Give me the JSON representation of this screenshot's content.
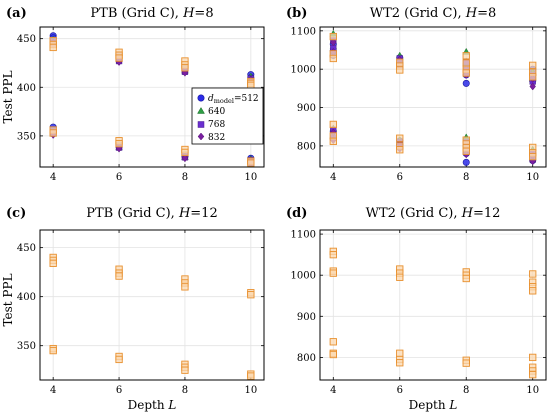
{
  "colors": {
    "d512": "#2b2be8",
    "d640": "#2e9e44",
    "d768": "#6a2fd0",
    "d832": "#7a1fa0",
    "grid": "#e3e3e3",
    "orange_fill": "#fbd8b0",
    "orange_edge": "#e8902e"
  },
  "chart_data": [
    {
      "panel_label": "(a)",
      "type": "scatter",
      "title": "PTB (Grid C), H=8",
      "title_main": "PTB (Grid C), ",
      "title_var": "H",
      "title_tail": "=8",
      "xlabel": "",
      "ylabel": "Test PPL",
      "x_ticks": [
        "4",
        "6",
        "8",
        "10"
      ],
      "y_ticks": [
        "350",
        "400",
        "450"
      ],
      "xlim": [
        3.6,
        10.4
      ],
      "ylim": [
        318,
        462
      ],
      "grid": true,
      "legend": {
        "placement": "center-right",
        "prefix": "d",
        "sub": "model",
        "entries": [
          "=512",
          "640",
          "768",
          "832"
        ]
      },
      "series": [
        {
          "name": "d_model=512",
          "marker": "circle",
          "color_key": "d512",
          "points": [
            [
              4,
              453
            ],
            [
              4,
              451
            ],
            [
              4,
              359
            ],
            [
              4,
              356
            ],
            [
              6,
              433
            ],
            [
              6,
              430
            ],
            [
              6,
              341
            ],
            [
              6,
              339
            ],
            [
              8,
              421
            ],
            [
              8,
              419
            ],
            [
              8,
              331
            ],
            [
              8,
              329
            ],
            [
              10,
              413
            ],
            [
              10,
              410
            ],
            [
              10,
              327
            ],
            [
              10,
              324
            ]
          ]
        },
        {
          "name": "640",
          "marker": "triangle",
          "color_key": "d640",
          "points": [
            [
              4,
              449
            ],
            [
              4,
              447
            ],
            [
              4,
              354
            ],
            [
              4,
              352
            ],
            [
              6,
              431
            ],
            [
              6,
              429
            ],
            [
              6,
              341
            ],
            [
              6,
              338
            ],
            [
              8,
              419
            ],
            [
              8,
              417
            ],
            [
              8,
              331
            ],
            [
              8,
              328
            ],
            [
              10,
              411
            ],
            [
              10,
              409
            ],
            [
              10,
              326
            ],
            [
              10,
              324
            ]
          ]
        },
        {
          "name": "768",
          "marker": "square",
          "color_key": "d768",
          "points": [
            [
              4,
              447
            ],
            [
              4,
              445
            ],
            [
              4,
              355
            ],
            [
              4,
              353
            ],
            [
              6,
              429
            ],
            [
              6,
              427
            ],
            [
              6,
              340
            ],
            [
              6,
              338
            ],
            [
              8,
              418
            ],
            [
              8,
              416
            ],
            [
              8,
              330
            ],
            [
              8,
              328
            ],
            [
              10,
              409
            ],
            [
              10,
              407
            ],
            [
              10,
              325
            ],
            [
              10,
              322
            ]
          ]
        },
        {
          "name": "832",
          "marker": "diamond",
          "color_key": "d832",
          "points": [
            [
              4,
              446
            ],
            [
              4,
              444
            ],
            [
              4,
              353
            ],
            [
              4,
              351
            ],
            [
              6,
              428
            ],
            [
              6,
              426
            ],
            [
              6,
              339
            ],
            [
              6,
              337
            ],
            [
              8,
              417
            ],
            [
              8,
              415
            ],
            [
              8,
              329
            ],
            [
              8,
              327
            ],
            [
              10,
              408
            ],
            [
              10,
              406
            ],
            [
              10,
              325
            ],
            [
              10,
              322
            ]
          ]
        },
        {
          "marker": "square-outline",
          "color_key": "orange_edge",
          "points": [
            [
              4,
              448
            ],
            [
              4,
              444
            ],
            [
              4,
              441
            ],
            [
              4,
              356
            ],
            [
              4,
              353
            ],
            [
              6,
              436
            ],
            [
              6,
              433
            ],
            [
              6,
              430
            ],
            [
              6,
              345
            ],
            [
              6,
              342
            ],
            [
              8,
              427
            ],
            [
              8,
              423
            ],
            [
              8,
              420
            ],
            [
              8,
              336
            ],
            [
              8,
              333
            ],
            [
              10,
              406
            ],
            [
              10,
              404
            ],
            [
              10,
              402
            ],
            [
              10,
              324
            ],
            [
              10,
              322
            ]
          ]
        }
      ]
    },
    {
      "panel_label": "(b)",
      "type": "scatter",
      "title": "WT2 (Grid C), H=8",
      "title_main": "WT2 (Grid C), ",
      "title_var": "H",
      "title_tail": "=8",
      "xlabel": "",
      "ylabel": "",
      "x_ticks": [
        "4",
        "6",
        "8",
        "10"
      ],
      "y_ticks": [
        "800",
        "900",
        "1000",
        "1100"
      ],
      "xlim": [
        3.6,
        10.4
      ],
      "ylim": [
        745,
        1110
      ],
      "grid": true,
      "series": [
        {
          "name": "d_model=512",
          "marker": "circle",
          "color_key": "d512",
          "points": [
            [
              4,
              1065
            ],
            [
              4,
              1048
            ],
            [
              4,
              1036
            ],
            [
              4,
              838
            ],
            [
              4,
              820
            ],
            [
              6,
              1030
            ],
            [
              6,
              1016
            ],
            [
              6,
              1008
            ],
            [
              6,
              813
            ],
            [
              6,
              803
            ],
            [
              8,
              1010
            ],
            [
              8,
              985
            ],
            [
              8,
              963
            ],
            [
              8,
              800
            ],
            [
              8,
              780
            ],
            [
              8,
              757
            ],
            [
              10,
              1000
            ],
            [
              10,
              985
            ],
            [
              10,
              970
            ],
            [
              10,
              780
            ],
            [
              10,
              762
            ]
          ]
        },
        {
          "name": "640",
          "marker": "triangle",
          "color_key": "d640",
          "points": [
            [
              4,
              1092
            ],
            [
              4,
              1060
            ],
            [
              4,
              845
            ],
            [
              4,
              825
            ],
            [
              6,
              1035
            ],
            [
              6,
              1022
            ],
            [
              6,
              815
            ],
            [
              6,
              800
            ],
            [
              8,
              1045
            ],
            [
              8,
              1020
            ],
            [
              8,
              822
            ],
            [
              8,
              803
            ],
            [
              10,
              992
            ],
            [
              10,
              975
            ],
            [
              10,
              790
            ],
            [
              10,
              770
            ]
          ]
        },
        {
          "name": "768",
          "marker": "square",
          "color_key": "d768",
          "points": [
            [
              4,
              1075
            ],
            [
              4,
              1055
            ],
            [
              4,
              842
            ],
            [
              4,
              822
            ],
            [
              6,
              1028
            ],
            [
              6,
              1014
            ],
            [
              6,
              810
            ],
            [
              6,
              797
            ],
            [
              8,
              1020
            ],
            [
              8,
              998
            ],
            [
              8,
              810
            ],
            [
              8,
              790
            ],
            [
              10,
              985
            ],
            [
              10,
              968
            ],
            [
              10,
              782
            ],
            [
              10,
              765
            ]
          ]
        },
        {
          "name": "832",
          "marker": "diamond",
          "color_key": "d832",
          "points": [
            [
              4,
              1070
            ],
            [
              4,
              1045
            ],
            [
              4,
              835
            ],
            [
              4,
              815
            ],
            [
              6,
              1025
            ],
            [
              6,
              1010
            ],
            [
              6,
              805
            ],
            [
              6,
              793
            ],
            [
              8,
              1000
            ],
            [
              8,
              985
            ],
            [
              8,
              795
            ],
            [
              8,
              778
            ],
            [
              10,
              975
            ],
            [
              10,
              955
            ],
            [
              10,
              775
            ],
            [
              10,
              760
            ]
          ]
        },
        {
          "marker": "square-outline",
          "color_key": "orange_edge",
          "points": [
            [
              4,
              1085
            ],
            [
              4,
              1040
            ],
            [
              4,
              1028
            ],
            [
              4,
              856
            ],
            [
              4,
              826
            ],
            [
              4,
              812
            ],
            [
              6,
              1018
            ],
            [
              6,
              1008
            ],
            [
              6,
              998
            ],
            [
              6,
              820
            ],
            [
              6,
              800
            ],
            [
              6,
              790
            ],
            [
              8,
              1035
            ],
            [
              8,
              1016
            ],
            [
              8,
              1000
            ],
            [
              8,
              990
            ],
            [
              8,
              815
            ],
            [
              8,
              805
            ],
            [
              8,
              795
            ],
            [
              8,
              786
            ],
            [
              10,
              1010
            ],
            [
              10,
              992
            ],
            [
              10,
              980
            ],
            [
              10,
              796
            ],
            [
              10,
              782
            ],
            [
              10,
              772
            ]
          ]
        }
      ]
    },
    {
      "panel_label": "(c)",
      "type": "scatter",
      "title": "PTB (Grid C), H=12",
      "title_main": "PTB (Grid C), ",
      "title_var": "H",
      "title_tail": "=12",
      "xlabel": "Depth L",
      "xlabel_main": "Depth ",
      "xlabel_var": "L",
      "ylabel": "Test PPL",
      "x_ticks": [
        "4",
        "6",
        "8",
        "10"
      ],
      "y_ticks": [
        "350",
        "400",
        "450"
      ],
      "xlim": [
        3.6,
        10.4
      ],
      "ylim": [
        315,
        468
      ],
      "grid": true,
      "series": [
        {
          "marker": "square-outline",
          "color_key": "orange_edge",
          "points": [
            [
              4,
              440
            ],
            [
              4,
              437
            ],
            [
              4,
              434
            ],
            [
              4,
              347
            ],
            [
              4,
              345
            ],
            [
              6,
              428
            ],
            [
              6,
              424
            ],
            [
              6,
              421
            ],
            [
              6,
              339
            ],
            [
              6,
              336
            ],
            [
              8,
              418
            ],
            [
              8,
              414
            ],
            [
              8,
              410
            ],
            [
              8,
              331
            ],
            [
              8,
              328
            ],
            [
              8,
              325
            ],
            [
              10,
              404
            ],
            [
              10,
              402
            ],
            [
              10,
              321
            ],
            [
              10,
              319
            ]
          ]
        }
      ]
    },
    {
      "panel_label": "(d)",
      "type": "scatter",
      "title": "WT2 (Grid C), H=12",
      "title_main": "WT2 (Grid C), ",
      "title_var": "H",
      "title_tail": "=12",
      "xlabel": "Depth L",
      "xlabel_main": "Depth ",
      "xlabel_var": "L",
      "ylabel": "",
      "x_ticks": [
        "4",
        "6",
        "8",
        "10"
      ],
      "y_ticks": [
        "800",
        "900",
        "1000",
        "1100"
      ],
      "xlim": [
        3.6,
        10.4
      ],
      "ylim": [
        745,
        1110
      ],
      "grid": true,
      "series": [
        {
          "marker": "square-outline",
          "color_key": "orange_edge",
          "points": [
            [
              4,
              1058
            ],
            [
              4,
              1050
            ],
            [
              4,
              1010
            ],
            [
              4,
              1005
            ],
            [
              4,
              838
            ],
            [
              4,
              810
            ],
            [
              4,
              807
            ],
            [
              6,
              1015
            ],
            [
              6,
              1005
            ],
            [
              6,
              995
            ],
            [
              6,
              810
            ],
            [
              6,
              795
            ],
            [
              6,
              787
            ],
            [
              8,
              1008
            ],
            [
              8,
              1000
            ],
            [
              8,
              992
            ],
            [
              8,
              793
            ],
            [
              8,
              786
            ],
            [
              10,
              1003
            ],
            [
              10,
              983
            ],
            [
              10,
              972
            ],
            [
              10,
              962
            ],
            [
              10,
              800
            ],
            [
              10,
              776
            ],
            [
              10,
              767
            ],
            [
              10,
              758
            ]
          ]
        }
      ]
    }
  ]
}
